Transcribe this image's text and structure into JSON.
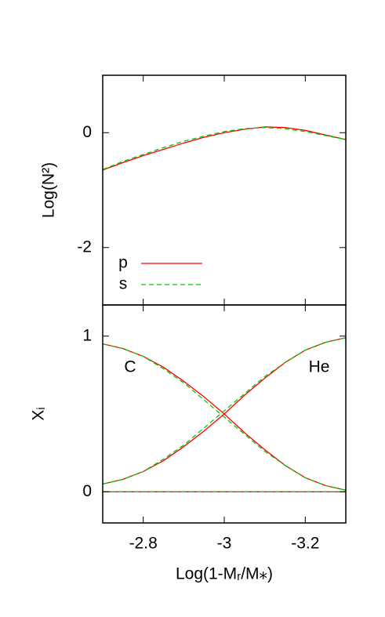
{
  "chart_data": [
    {
      "type": "line",
      "ylabel": "Log(N²)",
      "x": [
        -2.7,
        -2.75,
        -2.8,
        -2.85,
        -2.9,
        -2.95,
        -3.0,
        -3.05,
        -3.1,
        -3.15,
        -3.2,
        -3.25,
        -3.3
      ],
      "xlim": [
        -2.7,
        -3.3
      ],
      "ylim": [
        -3,
        1
      ],
      "yticks": [
        0,
        -2
      ],
      "legend": "lower left",
      "series": [
        {
          "name": "p",
          "color": "#ff0000",
          "dash": "solid",
          "values": [
            -0.65,
            -0.52,
            -0.4,
            -0.29,
            -0.18,
            -0.08,
            0.0,
            0.06,
            0.1,
            0.09,
            0.04,
            -0.04,
            -0.12
          ]
        },
        {
          "name": "s",
          "color": "#00cc00",
          "dash": "dashed",
          "values": [
            -0.64,
            -0.5,
            -0.38,
            -0.26,
            -0.15,
            -0.06,
            0.02,
            0.07,
            0.09,
            0.07,
            0.02,
            -0.05,
            -0.12
          ]
        }
      ]
    },
    {
      "type": "line",
      "xlabel": "Log(1-Mᵣ/M⁎)",
      "ylabel": "Xᵢ",
      "x": [
        -2.7,
        -2.75,
        -2.8,
        -2.85,
        -2.9,
        -2.95,
        -3.0,
        -3.05,
        -3.1,
        -3.15,
        -3.2,
        -3.25,
        -3.3
      ],
      "xlim": [
        -2.7,
        -3.3
      ],
      "xticks": [
        -2.8,
        -3,
        -3.2
      ],
      "ylim": [
        -0.2,
        1.2
      ],
      "yticks": [
        0,
        1
      ],
      "annotations": [
        "C",
        "He"
      ],
      "series": [
        {
          "color": "#ff0000",
          "dash": "solid",
          "values": [
            0.95,
            0.92,
            0.87,
            0.8,
            0.71,
            0.61,
            0.5,
            0.38,
            0.27,
            0.17,
            0.09,
            0.04,
            0.01
          ]
        },
        {
          "color": "#00cc00",
          "dash": "dashed",
          "values": [
            0.95,
            0.92,
            0.87,
            0.79,
            0.7,
            0.59,
            0.48,
            0.37,
            0.26,
            0.17,
            0.09,
            0.04,
            0.01
          ]
        },
        {
          "color": "#ff0000",
          "dash": "solid",
          "values": [
            0.05,
            0.08,
            0.13,
            0.2,
            0.29,
            0.39,
            0.5,
            0.62,
            0.73,
            0.83,
            0.91,
            0.96,
            0.99
          ]
        },
        {
          "color": "#00cc00",
          "dash": "dashed",
          "values": [
            0.05,
            0.08,
            0.13,
            0.21,
            0.3,
            0.41,
            0.52,
            0.63,
            0.74,
            0.83,
            0.91,
            0.96,
            0.99
          ]
        },
        {
          "color": "#ff0000",
          "dash": "solid",
          "values": [
            0,
            0,
            0,
            0,
            0,
            0,
            0,
            0,
            0,
            0,
            0,
            0,
            0
          ]
        },
        {
          "color": "#00cc00",
          "dash": "dashed",
          "values": [
            0,
            0,
            0,
            0,
            0,
            0,
            0,
            0,
            0,
            0,
            0,
            0,
            0
          ]
        }
      ]
    }
  ]
}
